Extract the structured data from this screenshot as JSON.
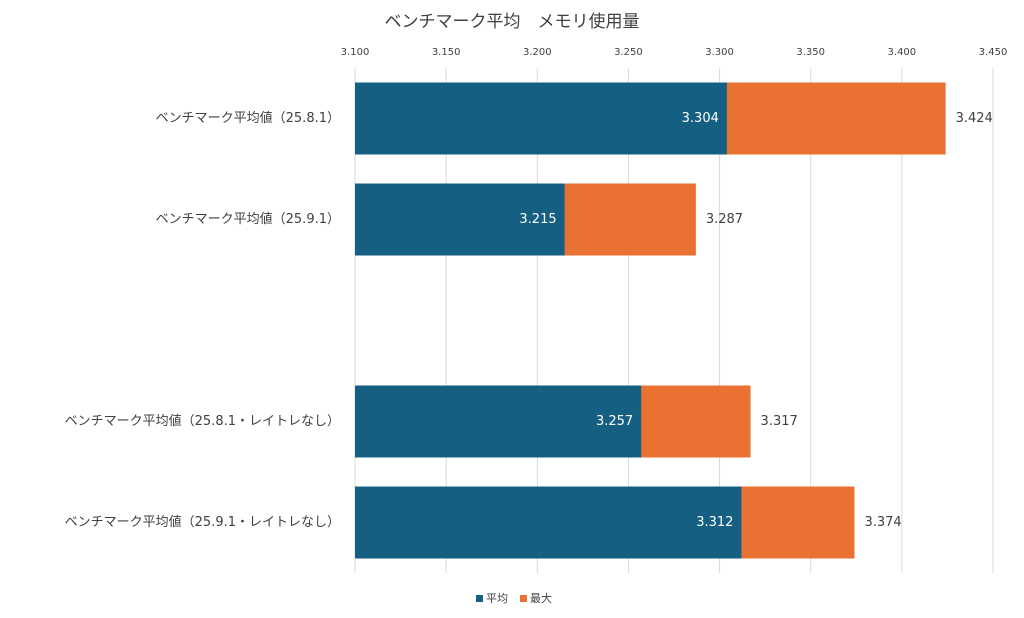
{
  "chart_data": {
    "type": "bar",
    "orientation": "horizontal",
    "overlap": true,
    "title": "ベンチマーク平均　メモリ使用量",
    "categories": [
      "ベンチマーク平均値（25.8.1）",
      "ベンチマーク平均値（25.9.1）",
      null,
      "ベンチマーク平均値（25.8.1・レイトレなし）",
      "ベンチマーク平均値（25.9.1・レイトレなし）"
    ],
    "series": [
      {
        "name": "最大",
        "color": "#e97132",
        "values": [
          3.424,
          3.287,
          null,
          3.317,
          3.374
        ]
      },
      {
        "name": "平均",
        "color": "#156082",
        "values": [
          3.304,
          3.215,
          null,
          3.257,
          3.312
        ]
      }
    ],
    "xlim": [
      3.1,
      3.45
    ],
    "xticks": [
      {
        "value": 3.1,
        "label": "3.100"
      },
      {
        "value": 3.15,
        "label": "3.150"
      },
      {
        "value": 3.2,
        "label": "3.200"
      },
      {
        "value": 3.25,
        "label": "3.250"
      },
      {
        "value": 3.3,
        "label": "3.300"
      },
      {
        "value": 3.35,
        "label": "3.350"
      },
      {
        "value": 3.4,
        "label": "3.400"
      },
      {
        "value": 3.45,
        "label": "3.450"
      }
    ],
    "grid": true,
    "legend": "bottom"
  }
}
